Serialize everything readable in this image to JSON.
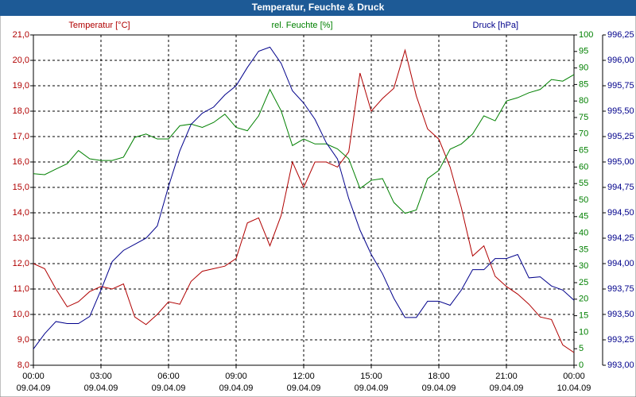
{
  "chart_data": {
    "type": "line",
    "title": "Temperatur, Feuchte & Druck",
    "x": [
      0,
      0.5,
      1,
      1.5,
      2,
      2.5,
      3,
      3.5,
      4,
      4.5,
      5,
      5.5,
      6,
      6.5,
      7,
      7.5,
      8,
      8.5,
      9,
      9.5,
      10,
      10.5,
      11,
      11.5,
      12,
      12.5,
      13,
      13.5,
      14,
      14.5,
      15,
      15.5,
      16,
      16.5,
      17,
      17.5,
      18,
      18.5,
      19,
      19.5,
      20,
      20.5,
      21,
      21.5,
      22,
      22.5,
      23,
      23.5,
      24
    ],
    "xlim": [
      0,
      24
    ],
    "xticks": [
      {
        "value": 0,
        "label": "00:00",
        "sublabel": "09.04.09"
      },
      {
        "value": 3,
        "label": "03:00",
        "sublabel": "09.04.09"
      },
      {
        "value": 6,
        "label": "06:00",
        "sublabel": "09.04.09"
      },
      {
        "value": 9,
        "label": "09:00",
        "sublabel": "09.04.09"
      },
      {
        "value": 12,
        "label": "12:00",
        "sublabel": "09.04.09"
      },
      {
        "value": 15,
        "label": "15:00",
        "sublabel": "09.04.09"
      },
      {
        "value": 18,
        "label": "18:00",
        "sublabel": "09.04.09"
      },
      {
        "value": 21,
        "label": "21:00",
        "sublabel": "09.04.09"
      },
      {
        "value": 24,
        "label": "00:00",
        "sublabel": "10.04.09"
      }
    ],
    "ylim": [
      8,
      21
    ],
    "yticks": [
      {
        "value": 8,
        "label": "8,0"
      },
      {
        "value": 9,
        "label": "9,0"
      },
      {
        "value": 10,
        "label": "10,0"
      },
      {
        "value": 11,
        "label": "11,0"
      },
      {
        "value": 12,
        "label": "12,0"
      },
      {
        "value": 13,
        "label": "13,0"
      },
      {
        "value": 14,
        "label": "14,0"
      },
      {
        "value": 15,
        "label": "15,0"
      },
      {
        "value": 16,
        "label": "16,0"
      },
      {
        "value": 17,
        "label": "17,0"
      },
      {
        "value": 18,
        "label": "18,0"
      },
      {
        "value": 19,
        "label": "19,0"
      },
      {
        "value": 20,
        "label": "20,0"
      },
      {
        "value": 21,
        "label": "21,0"
      }
    ],
    "y2lim": [
      0,
      100
    ],
    "y2ticks": [
      0,
      5,
      10,
      15,
      20,
      25,
      30,
      35,
      40,
      45,
      50,
      55,
      60,
      65,
      70,
      75,
      80,
      85,
      90,
      95,
      100
    ],
    "y3lim": [
      993,
      996.25
    ],
    "y3ticks": [
      {
        "value": 993,
        "label": "993,00"
      },
      {
        "value": 993.25,
        "label": "993,25"
      },
      {
        "value": 993.5,
        "label": "993,50"
      },
      {
        "value": 993.75,
        "label": "993,75"
      },
      {
        "value": 994,
        "label": "994,00"
      },
      {
        "value": 994.25,
        "label": "994,25"
      },
      {
        "value": 994.5,
        "label": "994,50"
      },
      {
        "value": 994.75,
        "label": "994,75"
      },
      {
        "value": 995,
        "label": "995,00"
      },
      {
        "value": 995.25,
        "label": "995,25"
      },
      {
        "value": 995.5,
        "label": "995,50"
      },
      {
        "value": 995.75,
        "label": "995,75"
      },
      {
        "value": 996,
        "label": "996,00"
      },
      {
        "value": 996.25,
        "label": "996,25"
      }
    ],
    "grid": true,
    "series": [
      {
        "name": "Temperatur [°C]",
        "color": "#b00000",
        "axis": "y",
        "values": [
          12.0,
          11.8,
          11.0,
          10.3,
          10.5,
          10.9,
          11.1,
          11.0,
          11.2,
          9.9,
          9.6,
          10.0,
          10.5,
          10.4,
          11.3,
          11.7,
          11.8,
          11.9,
          12.2,
          13.6,
          13.8,
          12.7,
          13.9,
          16.0,
          15.0,
          16.0,
          16.0,
          15.8,
          16.4,
          19.5,
          18.0,
          18.5,
          18.9,
          20.4,
          18.6,
          17.3,
          16.9,
          15.8,
          14.2,
          12.3,
          12.7,
          11.5,
          11.1,
          10.8,
          10.4,
          9.9,
          9.8,
          8.8,
          8.5
        ]
      },
      {
        "name": "rel. Feuchte [%]",
        "color": "#008000",
        "axis": "y2",
        "values": [
          58,
          57.7,
          59.4,
          61,
          65,
          62.5,
          62,
          62,
          63,
          69,
          70,
          68.5,
          68.5,
          72.5,
          73,
          72,
          73.5,
          76,
          72,
          71,
          75.5,
          83.5,
          77,
          66.5,
          68.5,
          67,
          67,
          65.5,
          62.5,
          53.5,
          56,
          56.5,
          49.3,
          46,
          47,
          56.5,
          59,
          65.4,
          67,
          70,
          75.5,
          74,
          80,
          81,
          82.5,
          83.5,
          86.5,
          86,
          88
        ]
      },
      {
        "name": "Druck [hPa]",
        "color": "#00008b",
        "axis": "y3",
        "values": [
          993.16,
          993.31,
          993.43,
          993.41,
          993.41,
          993.48,
          993.74,
          994.02,
          994.13,
          994.19,
          994.25,
          994.37,
          994.76,
          995.11,
          995.37,
          995.48,
          995.54,
          995.66,
          995.75,
          995.93,
          996.09,
          996.13,
          995.97,
          995.7,
          995.58,
          995.42,
          995.19,
          995.03,
          994.64,
          994.33,
          994.09,
          993.9,
          993.66,
          993.47,
          993.47,
          993.63,
          993.63,
          993.59,
          993.74,
          993.94,
          993.94,
          994.05,
          994.05,
          994.09,
          993.86,
          993.87,
          993.78,
          993.74,
          993.64
        ]
      }
    ]
  }
}
